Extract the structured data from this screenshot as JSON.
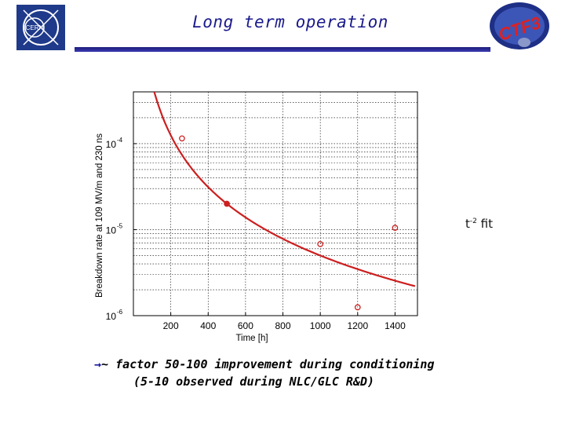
{
  "header": {
    "title": "Long term operation",
    "logo_left": "CERN",
    "logo_right": "CTF3"
  },
  "fit_label": {
    "base": "t",
    "exponent": "-2",
    "suffix": " fit"
  },
  "conclusion": {
    "arrow": "→",
    "line1": "~ factor 50-100 improvement during conditioning",
    "line2": "(5-10 observed during NLC/GLC R&D)"
  },
  "chart_data": {
    "type": "scatter",
    "xlabel": "Time [h]",
    "ylabel": "Breakdown rate at 109 MV/m and 230 ns",
    "xlim": [
      0,
      1520
    ],
    "ylim": [
      1e-06,
      0.0004
    ],
    "yscale": "log",
    "xticks": [
      200,
      400,
      600,
      800,
      1000,
      1200,
      1400
    ],
    "yticks": [
      {
        "value": 1e-06,
        "base": "10",
        "exp": "-6"
      },
      {
        "value": 1e-05,
        "base": "10",
        "exp": "-5"
      },
      {
        "value": 0.0001,
        "base": "10",
        "exp": "-4"
      }
    ],
    "grid": true,
    "colors": {
      "points": "#cc2020",
      "fit": "#cc1f1f",
      "grid": "#000000"
    },
    "points": [
      {
        "x": 260,
        "y": 0.000115,
        "filled": false
      },
      {
        "x": 500,
        "y": 2e-05,
        "filled": true
      },
      {
        "x": 1000,
        "y": 6.8e-06,
        "filled": false
      },
      {
        "x": 1200,
        "y": 1.25e-06,
        "filled": false
      },
      {
        "x": 1400,
        "y": 1.05e-05,
        "filled": false
      }
    ],
    "fit": {
      "model": "t^-2 fit",
      "coefficient": 5.0
    }
  }
}
